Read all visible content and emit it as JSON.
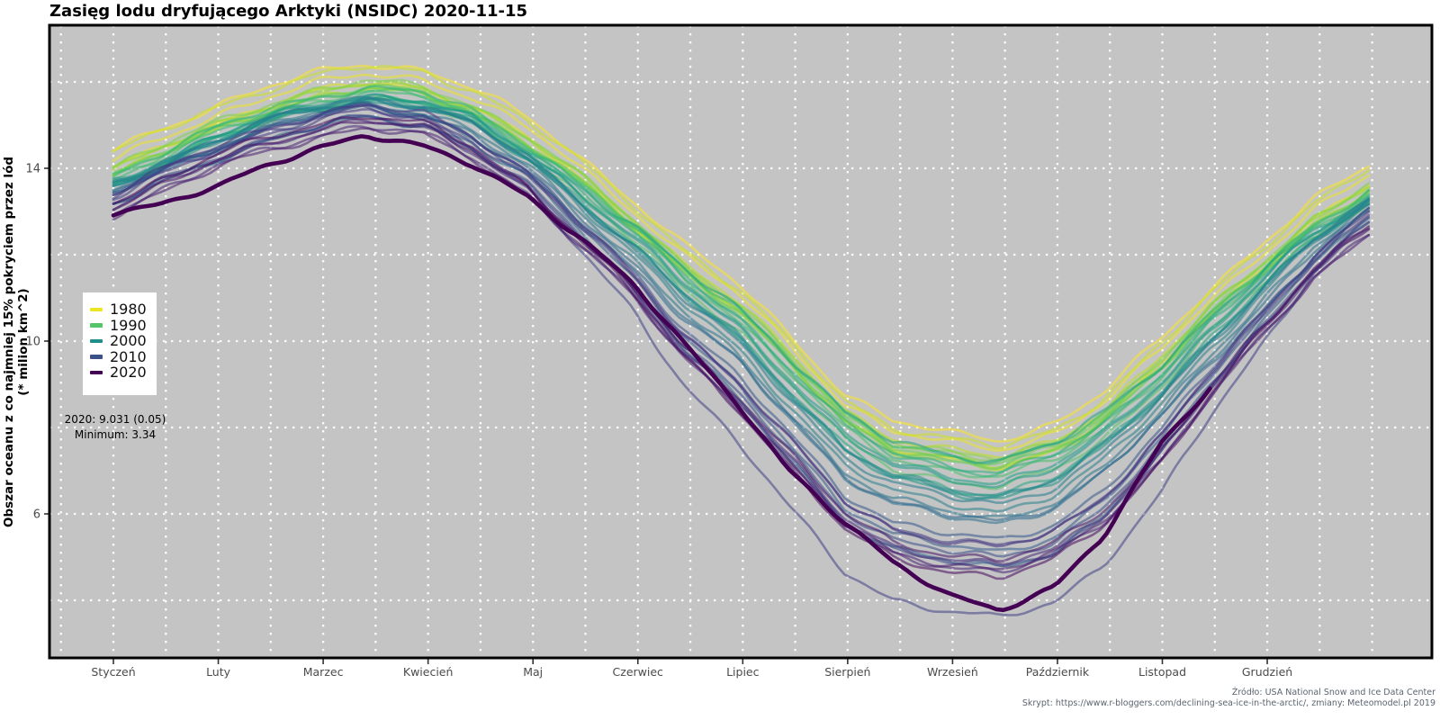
{
  "title": "Zasięg lodu dryfującego Arktyki (NSIDC) 2020-11-15",
  "y_axis": {
    "title_line1": "Obszar oceanu z co najmniej 15% pokryciem przez lód",
    "title_line2": "(* milion km^2)",
    "tick_labels": [
      6,
      10,
      14
    ],
    "grid_values": [
      4,
      6,
      8,
      10,
      12,
      14,
      16
    ]
  },
  "x_axis": {
    "months": [
      "Styczeń",
      "Luty",
      "Marzec",
      "Kwiecień",
      "Maj",
      "Czerwiec",
      "Lipiec",
      "Sierpień",
      "Wrzesień",
      "Październik",
      "Listopad",
      "Grudzień"
    ]
  },
  "legend": {
    "entries": [
      {
        "label": "1980",
        "year": 1980
      },
      {
        "label": "1990",
        "year": 1990
      },
      {
        "label": "2000",
        "year": 2000
      },
      {
        "label": "2010",
        "year": 2010
      },
      {
        "label": "2020",
        "year": 2020
      }
    ]
  },
  "annotations": {
    "line1": "2020: 9.031 (0.05)",
    "line2": "Minimum: 3.34"
  },
  "caption": {
    "line1": "Źródło: USA National Snow and Ice Data Center",
    "line2": "Skrypt: https://www.r-bloggers.com/declining-sea-ice-in-the-arctic/, zmiany: Meteomodel.pl 2019"
  },
  "colors": {
    "panel_background": "#c4c4c4",
    "grid": "#ffffff",
    "panel_border": "#000000",
    "axis_text": "#4b4b4b",
    "viridis_stops": [
      "#fde725",
      "#c8e020",
      "#90d743",
      "#5ec962",
      "#35b779",
      "#20a386",
      "#21918c",
      "#287c8e",
      "#31688e",
      "#3b528b",
      "#443983",
      "#482173",
      "#440154"
    ]
  },
  "chart_data": {
    "type": "line",
    "title": "Zasięg lodu dryfującego Arktyki (NSIDC) 2020-11-15",
    "xlabel": "",
    "ylabel": "Obszar oceanu z co najmniej 15% pokryciem przez lód (* milion km^2)",
    "ylim": [
      2.7,
      17.3
    ],
    "x_range_days": [
      1,
      366
    ],
    "grid": "dotted-white",
    "legend_position": "left-middle",
    "anchor_days": [
      1,
      15,
      32,
      46,
      60,
      74,
      91,
      105,
      121,
      135,
      152,
      166,
      182,
      196,
      213,
      227,
      244,
      258,
      274,
      288,
      305,
      319,
      335,
      349,
      366
    ],
    "base_curve_1979": [
      14.1,
      14.6,
      15.2,
      15.6,
      15.9,
      16.1,
      16.0,
      15.6,
      14.9,
      14.1,
      13.05,
      12.1,
      11.2,
      10.1,
      8.7,
      8.05,
      7.75,
      7.6,
      8.0,
      8.7,
      9.9,
      11.0,
      12.1,
      13.0,
      13.8
    ],
    "winter_weight": [
      1,
      1,
      1,
      1,
      1,
      1,
      0.95,
      0.9,
      0.8,
      0.65,
      0.5,
      0.3,
      0.15,
      0.05,
      0,
      0,
      0,
      0,
      0,
      0.05,
      0.25,
      0.45,
      0.65,
      0.8,
      0.95
    ],
    "summer_weight": [
      0,
      0,
      0,
      0,
      0,
      0,
      0.05,
      0.1,
      0.2,
      0.35,
      0.5,
      0.7,
      0.85,
      0.95,
      1,
      1,
      1,
      1,
      1,
      0.95,
      0.8,
      0.6,
      0.4,
      0.2,
      0.05
    ],
    "series_params": [
      {
        "year": 1979,
        "winter_offset": -0.3,
        "summer_offset": -0.1
      },
      {
        "year": 1980,
        "winter_offset": 0.0,
        "summer_offset": 0.2
      },
      {
        "year": 1981,
        "winter_offset": 0.1,
        "summer_offset": 0.5
      },
      {
        "year": 1982,
        "winter_offset": -0.2,
        "summer_offset": 0.1
      },
      {
        "year": 1983,
        "winter_offset": 0.1,
        "summer_offset": 0.25
      },
      {
        "year": 1984,
        "winter_offset": 0.3,
        "summer_offset": 0.55
      },
      {
        "year": 1985,
        "winter_offset": 0.2,
        "summer_offset": 0.5
      },
      {
        "year": 1986,
        "winter_offset": 0.15,
        "summer_offset": 0.35
      },
      {
        "year": 1987,
        "winter_offset": 0.0,
        "summer_offset": 0.3
      },
      {
        "year": 1988,
        "winter_offset": 0.25,
        "summer_offset": 0.45
      },
      {
        "year": 1989,
        "winter_offset": 0.3,
        "summer_offset": 0.6
      },
      {
        "year": 1990,
        "winter_offset": 0.45,
        "summer_offset": 0.95
      },
      {
        "year": 1991,
        "winter_offset": 0.35,
        "summer_offset": 0.8
      },
      {
        "year": 1992,
        "winter_offset": 0.3,
        "summer_offset": 0.35
      },
      {
        "year": 1993,
        "winter_offset": 0.25,
        "summer_offset": 0.7
      },
      {
        "year": 1994,
        "winter_offset": 0.4,
        "summer_offset": 0.55
      },
      {
        "year": 1995,
        "winter_offset": 0.5,
        "summer_offset": 1.15
      },
      {
        "year": 1996,
        "winter_offset": 0.55,
        "summer_offset": 0.45
      },
      {
        "year": 1997,
        "winter_offset": 0.4,
        "summer_offset": 0.85
      },
      {
        "year": 1998,
        "winter_offset": 0.45,
        "summer_offset": 1.0
      },
      {
        "year": 1999,
        "winter_offset": 0.5,
        "summer_offset": 1.2
      },
      {
        "year": 2000,
        "winter_offset": 0.55,
        "summer_offset": 1.25
      },
      {
        "year": 2001,
        "winter_offset": 0.45,
        "summer_offset": 1.1
      },
      {
        "year": 2002,
        "winter_offset": 0.5,
        "summer_offset": 1.55
      },
      {
        "year": 2003,
        "winter_offset": 0.55,
        "summer_offset": 1.45
      },
      {
        "year": 2004,
        "winter_offset": 0.6,
        "summer_offset": 1.7
      },
      {
        "year": 2005,
        "winter_offset": 0.75,
        "summer_offset": 1.9
      },
      {
        "year": 2006,
        "winter_offset": 0.9,
        "summer_offset": 1.75
      },
      {
        "year": 2007,
        "winter_offset": 0.7,
        "summer_offset": 2.9
      },
      {
        "year": 2008,
        "winter_offset": 0.6,
        "summer_offset": 2.45
      },
      {
        "year": 2009,
        "winter_offset": 0.7,
        "summer_offset": 2.25
      },
      {
        "year": 2010,
        "winter_offset": 0.85,
        "summer_offset": 2.55
      },
      {
        "year": 2011,
        "winter_offset": 0.9,
        "summer_offset": 2.85
      },
      {
        "year": 2012,
        "winter_offset": 0.8,
        "summer_offset": 4.1
      },
      {
        "year": 2013,
        "winter_offset": 0.75,
        "summer_offset": 2.35
      },
      {
        "year": 2014,
        "winter_offset": 0.7,
        "summer_offset": 2.45
      },
      {
        "year": 2015,
        "winter_offset": 0.95,
        "summer_offset": 2.75
      },
      {
        "year": 2016,
        "winter_offset": 1.15,
        "summer_offset": 3.0
      },
      {
        "year": 2017,
        "winter_offset": 1.1,
        "summer_offset": 2.85
      },
      {
        "year": 2018,
        "winter_offset": 1.0,
        "summer_offset": 2.7
      },
      {
        "year": 2019,
        "winter_offset": 0.95,
        "summer_offset": 3.15
      }
    ],
    "series_2020": {
      "year": 2020,
      "end_day": 320,
      "days": [
        1,
        15,
        32,
        46,
        60,
        74,
        91,
        105,
        121,
        135,
        152,
        166,
        182,
        196,
        213,
        227,
        244,
        258,
        274,
        288,
        305,
        320
      ],
      "values": [
        13.0,
        13.2,
        13.6,
        14.1,
        14.5,
        14.8,
        14.5,
        14.1,
        13.4,
        12.5,
        11.3,
        10.0,
        8.6,
        7.1,
        5.8,
        4.9,
        4.15,
        3.78,
        4.3,
        5.5,
        7.7,
        9.03
      ]
    },
    "last_value_label": "9.031",
    "minimum_label": 3.34,
    "noise_amplitude": 0.055
  }
}
